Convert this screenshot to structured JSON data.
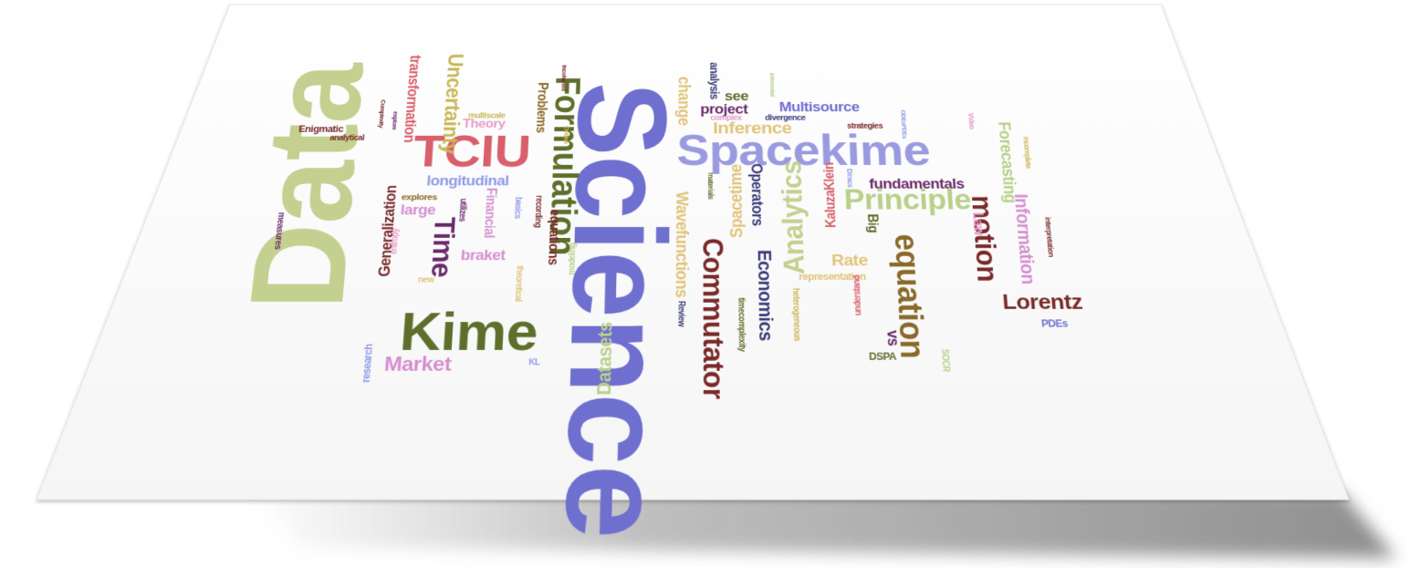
{
  "palette": {
    "sage": "#c3d08f",
    "rose": "#d8606b",
    "slate_blue": "#6f6fcf",
    "lavender": "#9a9ae0",
    "olive": "#5e6f2b",
    "orchid": "#d58fd2",
    "brown": "#8a6a2a",
    "maroon": "#7a2a2a",
    "sand": "#e0c47a",
    "periwinkle": "#8f9ae8",
    "plum": "#6a2a6a",
    "navy": "#3a3a7a",
    "khaki": "#c8b858",
    "pink": "#e89ac8",
    "light_green": "#b8d08a"
  },
  "words": [
    {
      "text": "Data"
    },
    {
      "text": "Science"
    },
    {
      "text": "Spacekime"
    },
    {
      "text": "TCIU"
    },
    {
      "text": "Kime"
    },
    {
      "text": "Formulation"
    },
    {
      "text": "Principle"
    },
    {
      "text": "equation"
    },
    {
      "text": "Commutator"
    },
    {
      "text": "Analytics"
    },
    {
      "text": "motion"
    },
    {
      "text": "Information"
    },
    {
      "text": "Uncertainty"
    },
    {
      "text": "Time"
    },
    {
      "text": "Lorentz"
    },
    {
      "text": "Market"
    },
    {
      "text": "Wavefunctions"
    },
    {
      "text": "Economics"
    },
    {
      "text": "Datasets"
    },
    {
      "text": "fundamentals"
    },
    {
      "text": "Inference"
    },
    {
      "text": "Multisource"
    },
    {
      "text": "Forecasting"
    },
    {
      "text": "Operators"
    },
    {
      "text": "Spacetime"
    },
    {
      "text": "Financial"
    },
    {
      "text": "longitudinal"
    },
    {
      "text": "transformation"
    },
    {
      "text": "Theory"
    },
    {
      "text": "Problems"
    },
    {
      "text": "change"
    },
    {
      "text": "project"
    },
    {
      "text": "Generalization"
    },
    {
      "text": "braket"
    },
    {
      "text": "equations"
    },
    {
      "text": "large"
    },
    {
      "text": "KaluzaKlein"
    },
    {
      "text": "Rate"
    },
    {
      "text": "Big"
    },
    {
      "text": "Law"
    },
    {
      "text": "vs"
    },
    {
      "text": "see"
    },
    {
      "text": "analysis"
    },
    {
      "text": "divergence"
    },
    {
      "text": "complex"
    },
    {
      "text": "strategies"
    },
    {
      "text": "representation"
    },
    {
      "text": "heterogeneous"
    },
    {
      "text": "timecomplexity"
    },
    {
      "text": "understand"
    },
    {
      "text": "interpretation"
    },
    {
      "text": "incomplete"
    },
    {
      "text": "Enigmatic"
    },
    {
      "text": "analytical"
    },
    {
      "text": "Complexity"
    },
    {
      "text": "explore"
    },
    {
      "text": "multiscale"
    },
    {
      "text": "Outline"
    },
    {
      "text": "incoherent"
    },
    {
      "text": "inferential"
    },
    {
      "text": "explores"
    },
    {
      "text": "utilizes"
    },
    {
      "text": "basics"
    },
    {
      "text": "recording"
    },
    {
      "text": "materials"
    },
    {
      "text": "measures"
    },
    {
      "text": "entropy"
    },
    {
      "text": "new"
    },
    {
      "text": "modeling"
    },
    {
      "text": "theoretical"
    },
    {
      "text": "research"
    },
    {
      "text": "KL"
    },
    {
      "text": "Review"
    },
    {
      "text": "DSPA"
    },
    {
      "text": "PDEs"
    },
    {
      "text": "ODEsPDEs"
    },
    {
      "text": "Video"
    },
    {
      "text": "Diracs"
    },
    {
      "text": "SOCR"
    }
  ]
}
